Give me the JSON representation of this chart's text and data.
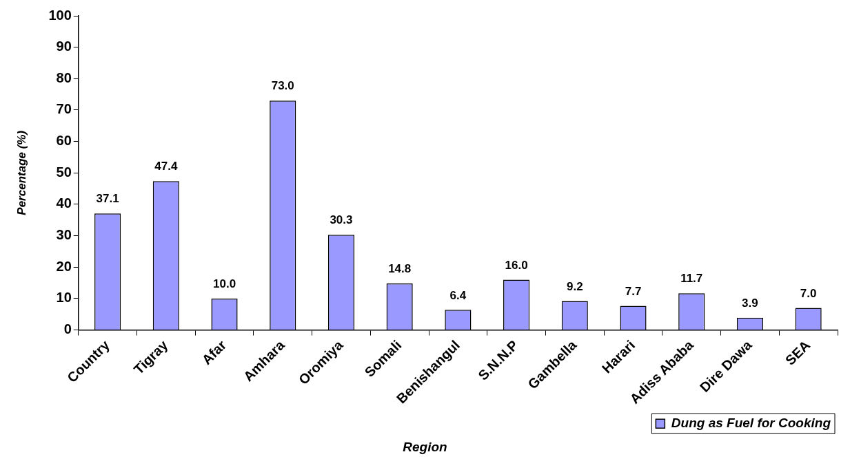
{
  "chart_data": {
    "type": "bar",
    "xlabel": "Region",
    "ylabel": "Percentage (%)",
    "categories": [
      "Country",
      "Tigray",
      "Afar",
      "Amhara",
      "Oromiya",
      "Somali",
      "Benishangul",
      "S.N.N.P",
      "Gambella",
      "Harari",
      "Adiss Ababa",
      "Dire Dawa",
      "SEA"
    ],
    "series": [
      {
        "name": "Dung as Fuel for Cooking",
        "color": "#9999ff",
        "values": [
          37.1,
          47.4,
          10.0,
          73.0,
          30.3,
          14.8,
          6.4,
          16.0,
          9.2,
          7.7,
          11.7,
          3.9,
          7.0
        ],
        "value_labels": [
          "37.1",
          "47.4",
          "10.0",
          "73.0",
          "30.3",
          "14.8",
          "6.4",
          "16.0",
          "9.2",
          "7.7",
          "11.7",
          "3.9",
          "7.0"
        ]
      }
    ],
    "ylim": [
      0,
      100
    ],
    "yticks": [
      0,
      10,
      20,
      30,
      40,
      50,
      60,
      70,
      80,
      90,
      100
    ],
    "grid": false,
    "legend": "bottom"
  }
}
